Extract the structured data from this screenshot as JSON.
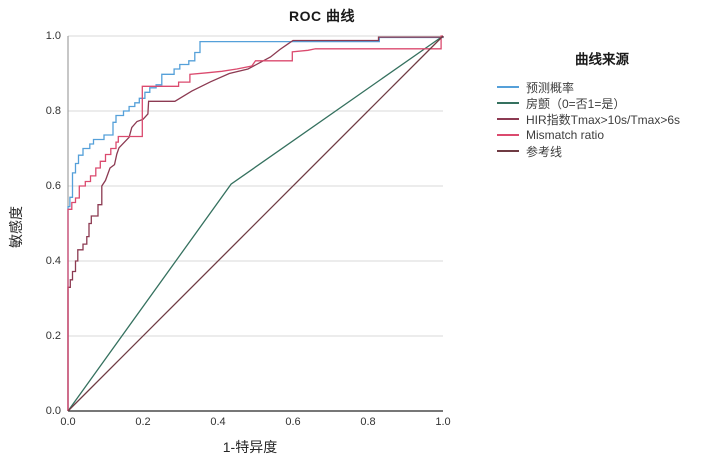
{
  "title": "ROC 曲线",
  "axes": {
    "x_label": "1-特异度",
    "y_label": "敏感度",
    "x_ticks": [
      "0.0",
      "0.2",
      "0.4",
      "0.6",
      "0.8",
      "1.0"
    ],
    "y_ticks": [
      "1.0",
      "0.8",
      "0.6",
      "0.4",
      "0.2",
      "0.0"
    ]
  },
  "legend": {
    "title": "曲线来源",
    "items": [
      {
        "label": "预测概率",
        "color": "#55A0D9"
      },
      {
        "label": "房颤（0=否1=是）",
        "color": "#35715F"
      },
      {
        "label": "HIR指数Tmax>10s/Tmax>6s",
        "color": "#8C3A52"
      },
      {
        "label": "Mismatch ratio",
        "color": "#DB4A6E"
      },
      {
        "label": "参考线",
        "color": "#6F3B43"
      }
    ]
  },
  "colors": {
    "gridline": "#D9D9D9",
    "axis_y": "#8F8F8F",
    "axis_x": "#262626",
    "text": "#262626"
  },
  "chart_data": {
    "type": "line",
    "title": "ROC 曲线",
    "xlabel": "1-特异度",
    "ylabel": "敏感度",
    "xlim": [
      0,
      1
    ],
    "ylim": [
      0,
      1
    ],
    "x_tick_values": [
      0,
      0.2,
      0.4,
      0.6,
      0.8,
      1.0
    ],
    "y_tick_values": [
      0,
      0.2,
      0.4,
      0.6,
      0.8,
      1.0
    ],
    "grid": "horizontal-only",
    "legend_position": "right",
    "series": [
      {
        "name": "预测概率",
        "color": "#55A0D9",
        "points": [
          [
            0,
            0
          ],
          [
            0,
            0.545
          ],
          [
            0.005,
            0.545
          ],
          [
            0.005,
            0.57
          ],
          [
            0.012,
            0.57
          ],
          [
            0.012,
            0.635
          ],
          [
            0.02,
            0.635
          ],
          [
            0.02,
            0.66
          ],
          [
            0.028,
            0.66
          ],
          [
            0.028,
            0.682
          ],
          [
            0.04,
            0.682
          ],
          [
            0.04,
            0.7
          ],
          [
            0.058,
            0.7
          ],
          [
            0.058,
            0.712
          ],
          [
            0.068,
            0.712
          ],
          [
            0.068,
            0.724
          ],
          [
            0.096,
            0.724
          ],
          [
            0.096,
            0.736
          ],
          [
            0.12,
            0.736
          ],
          [
            0.12,
            0.77
          ],
          [
            0.128,
            0.77
          ],
          [
            0.128,
            0.788
          ],
          [
            0.148,
            0.788
          ],
          [
            0.148,
            0.8
          ],
          [
            0.163,
            0.8
          ],
          [
            0.163,
            0.812
          ],
          [
            0.178,
            0.812
          ],
          [
            0.178,
            0.822
          ],
          [
            0.19,
            0.822
          ],
          [
            0.19,
            0.834
          ],
          [
            0.205,
            0.834
          ],
          [
            0.205,
            0.85
          ],
          [
            0.218,
            0.85
          ],
          [
            0.218,
            0.862
          ],
          [
            0.235,
            0.862
          ],
          [
            0.235,
            0.87
          ],
          [
            0.25,
            0.87
          ],
          [
            0.25,
            0.898
          ],
          [
            0.283,
            0.898
          ],
          [
            0.283,
            0.912
          ],
          [
            0.298,
            0.912
          ],
          [
            0.298,
            0.924
          ],
          [
            0.322,
            0.924
          ],
          [
            0.322,
            0.934
          ],
          [
            0.338,
            0.934
          ],
          [
            0.338,
            0.956
          ],
          [
            0.352,
            0.956
          ],
          [
            0.352,
            0.985
          ],
          [
            0.83,
            0.985
          ],
          [
            0.83,
            0.996
          ],
          [
            1,
            0.996
          ],
          [
            1,
            1
          ]
        ]
      },
      {
        "name": "房颤（0=否1=是）",
        "color": "#35715F",
        "points": [
          [
            0,
            0
          ],
          [
            0.435,
            0.605
          ],
          [
            1,
            1
          ]
        ]
      },
      {
        "name": "HIR指数Tmax>10s/Tmax>6s",
        "color": "#8C3A52",
        "points": [
          [
            0,
            0
          ],
          [
            0,
            0.33
          ],
          [
            0.006,
            0.33
          ],
          [
            0.006,
            0.35
          ],
          [
            0.012,
            0.35
          ],
          [
            0.012,
            0.372
          ],
          [
            0.02,
            0.372
          ],
          [
            0.02,
            0.4
          ],
          [
            0.026,
            0.4
          ],
          [
            0.026,
            0.43
          ],
          [
            0.04,
            0.43
          ],
          [
            0.04,
            0.445
          ],
          [
            0.05,
            0.445
          ],
          [
            0.05,
            0.465
          ],
          [
            0.056,
            0.465
          ],
          [
            0.056,
            0.5
          ],
          [
            0.062,
            0.5
          ],
          [
            0.062,
            0.52
          ],
          [
            0.08,
            0.52
          ],
          [
            0.08,
            0.55
          ],
          [
            0.09,
            0.55
          ],
          [
            0.09,
            0.6
          ],
          [
            0.1,
            0.615
          ],
          [
            0.112,
            0.648
          ],
          [
            0.124,
            0.657
          ],
          [
            0.13,
            0.685
          ],
          [
            0.136,
            0.702
          ],
          [
            0.163,
            0.73
          ],
          [
            0.17,
            0.756
          ],
          [
            0.184,
            0.772
          ],
          [
            0.2,
            0.778
          ],
          [
            0.213,
            0.792
          ],
          [
            0.215,
            0.826
          ],
          [
            0.285,
            0.826
          ],
          [
            0.33,
            0.853
          ],
          [
            0.38,
            0.878
          ],
          [
            0.43,
            0.9
          ],
          [
            0.48,
            0.912
          ],
          [
            0.54,
            0.944
          ],
          [
            0.565,
            0.964
          ],
          [
            0.585,
            0.978
          ],
          [
            0.6,
            0.988
          ],
          [
            0.828,
            0.988
          ],
          [
            0.828,
            0.997
          ],
          [
            1,
            0.997
          ],
          [
            1,
            1
          ]
        ]
      },
      {
        "name": "Mismatch ratio",
        "color": "#DB4A6E",
        "points": [
          [
            0,
            0
          ],
          [
            0,
            0.538
          ],
          [
            0.01,
            0.538
          ],
          [
            0.01,
            0.556
          ],
          [
            0.02,
            0.556
          ],
          [
            0.02,
            0.568
          ],
          [
            0.03,
            0.568
          ],
          [
            0.03,
            0.6
          ],
          [
            0.046,
            0.6
          ],
          [
            0.046,
            0.612
          ],
          [
            0.06,
            0.612
          ],
          [
            0.06,
            0.627
          ],
          [
            0.074,
            0.627
          ],
          [
            0.074,
            0.648
          ],
          [
            0.086,
            0.648
          ],
          [
            0.086,
            0.666
          ],
          [
            0.1,
            0.666
          ],
          [
            0.1,
            0.684
          ],
          [
            0.114,
            0.684
          ],
          [
            0.114,
            0.7
          ],
          [
            0.128,
            0.7
          ],
          [
            0.128,
            0.717
          ],
          [
            0.134,
            0.717
          ],
          [
            0.134,
            0.732
          ],
          [
            0.198,
            0.732
          ],
          [
            0.198,
            0.866
          ],
          [
            0.295,
            0.866
          ],
          [
            0.295,
            0.877
          ],
          [
            0.325,
            0.877
          ],
          [
            0.325,
            0.898
          ],
          [
            0.37,
            0.902
          ],
          [
            0.41,
            0.906
          ],
          [
            0.45,
            0.912
          ],
          [
            0.49,
            0.92
          ],
          [
            0.5,
            0.934
          ],
          [
            0.598,
            0.934
          ],
          [
            0.598,
            0.958
          ],
          [
            0.64,
            0.962
          ],
          [
            0.66,
            0.966
          ],
          [
            0.995,
            0.966
          ],
          [
            0.995,
            1
          ],
          [
            1,
            1
          ]
        ]
      },
      {
        "name": "参考线",
        "color": "#6F3B43",
        "points": [
          [
            0,
            0
          ],
          [
            1,
            1
          ]
        ]
      }
    ]
  }
}
